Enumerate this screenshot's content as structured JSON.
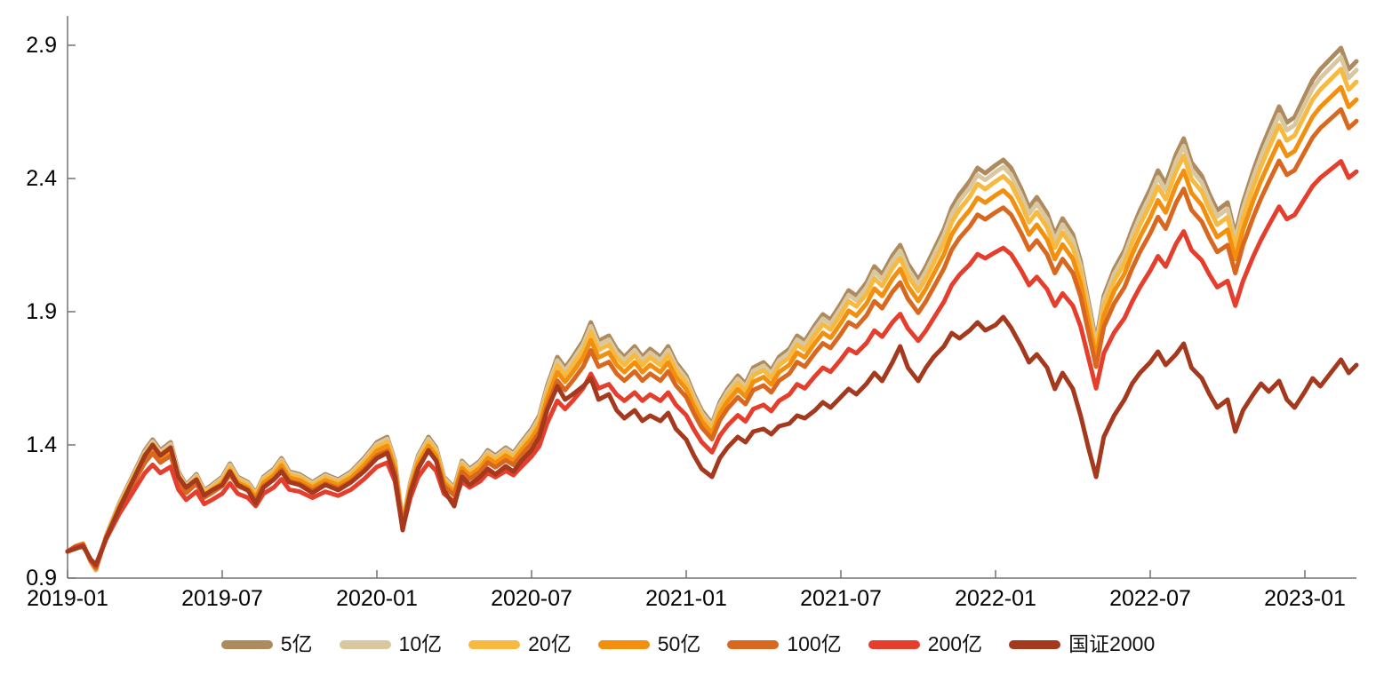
{
  "chart_data": {
    "type": "line",
    "title": "",
    "xlabel": "",
    "ylabel": "",
    "grid": false,
    "legend_position": "bottom-center",
    "background_color": "#ffffff",
    "axis_color": "#737373",
    "tick_label_color": "#000000",
    "ylim": [
      0.9,
      2.9
    ],
    "y_ticks": [
      0.9,
      1.4,
      1.9,
      2.4,
      2.9
    ],
    "xlim_months": [
      0,
      50
    ],
    "x_tick_positions_months": [
      0,
      6,
      12,
      18,
      24,
      30,
      36,
      42,
      48
    ],
    "x_tick_labels": [
      "2019-01",
      "2019-07",
      "2020-01",
      "2020-07",
      "2021-01",
      "2021-07",
      "2022-01",
      "2022-07",
      "2023-01"
    ],
    "x_unit": "months since 2019-01",
    "x": [
      0,
      0.3,
      0.6,
      0.9,
      1.1,
      1.5,
      2.0,
      2.5,
      3.0,
      3.3,
      3.6,
      4.0,
      4.3,
      4.6,
      5.0,
      5.3,
      5.6,
      6.0,
      6.3,
      6.6,
      7.0,
      7.3,
      7.6,
      8.0,
      8.3,
      8.6,
      9.0,
      9.5,
      10.0,
      10.5,
      11.0,
      11.5,
      12.0,
      12.4,
      12.7,
      13.0,
      13.3,
      13.6,
      14.0,
      14.3,
      14.6,
      15.0,
      15.3,
      15.6,
      16.0,
      16.3,
      16.6,
      17.0,
      17.3,
      17.6,
      18.0,
      18.3,
      18.6,
      19.0,
      19.3,
      19.6,
      20.0,
      20.3,
      20.6,
      21.0,
      21.3,
      21.6,
      22.0,
      22.3,
      22.6,
      23.0,
      23.3,
      23.6,
      24.0,
      24.3,
      24.6,
      25.0,
      25.3,
      25.6,
      26.0,
      26.3,
      26.6,
      27.0,
      27.3,
      27.6,
      28.0,
      28.3,
      28.6,
      29.0,
      29.3,
      29.6,
      30.0,
      30.3,
      30.6,
      31.0,
      31.3,
      31.6,
      32.0,
      32.3,
      32.6,
      33.0,
      33.3,
      33.6,
      34.0,
      34.3,
      34.6,
      35.0,
      35.3,
      35.6,
      36.0,
      36.3,
      36.6,
      37.0,
      37.3,
      37.6,
      38.0,
      38.3,
      38.6,
      39.0,
      39.3,
      39.6,
      39.9,
      40.2,
      40.6,
      41.0,
      41.3,
      41.6,
      42.0,
      42.3,
      42.6,
      43.0,
      43.3,
      43.6,
      44.0,
      44.3,
      44.6,
      45.0,
      45.3,
      45.6,
      46.0,
      46.3,
      46.6,
      47.0,
      47.3,
      47.6,
      48.0,
      48.3,
      48.6,
      49.0,
      49.4,
      49.7,
      50.0
    ],
    "fund_base_values": [
      1.0,
      1.02,
      1.03,
      0.96,
      0.93,
      1.06,
      1.18,
      1.28,
      1.38,
      1.42,
      1.38,
      1.41,
      1.3,
      1.25,
      1.29,
      1.23,
      1.25,
      1.28,
      1.33,
      1.28,
      1.26,
      1.22,
      1.28,
      1.31,
      1.35,
      1.3,
      1.29,
      1.26,
      1.29,
      1.27,
      1.3,
      1.35,
      1.41,
      1.43,
      1.34,
      1.11,
      1.26,
      1.36,
      1.43,
      1.39,
      1.28,
      1.24,
      1.34,
      1.31,
      1.34,
      1.38,
      1.36,
      1.39,
      1.37,
      1.41,
      1.46,
      1.51,
      1.62,
      1.73,
      1.69,
      1.73,
      1.79,
      1.86,
      1.79,
      1.81,
      1.76,
      1.73,
      1.77,
      1.73,
      1.76,
      1.73,
      1.77,
      1.71,
      1.66,
      1.59,
      1.53,
      1.48,
      1.56,
      1.61,
      1.66,
      1.63,
      1.69,
      1.71,
      1.68,
      1.73,
      1.76,
      1.81,
      1.79,
      1.85,
      1.89,
      1.87,
      1.93,
      1.98,
      1.96,
      2.01,
      2.07,
      2.04,
      2.11,
      2.15,
      2.08,
      2.02,
      2.07,
      2.13,
      2.21,
      2.29,
      2.34,
      2.39,
      2.44,
      2.42,
      2.45,
      2.47,
      2.44,
      2.36,
      2.29,
      2.33,
      2.27,
      2.19,
      2.25,
      2.19,
      2.09,
      1.94,
      1.79,
      1.96,
      2.06,
      2.13,
      2.21,
      2.28,
      2.36,
      2.43,
      2.38,
      2.49,
      2.55,
      2.46,
      2.41,
      2.34,
      2.28,
      2.31,
      2.19,
      2.31,
      2.43,
      2.51,
      2.58,
      2.67,
      2.61,
      2.63,
      2.71,
      2.77,
      2.81,
      2.85,
      2.89,
      2.81,
      2.84
    ],
    "series": [
      {
        "name": "5亿",
        "color": "#AE8A5F",
        "base_multiplier": 1.0
      },
      {
        "name": "10亿",
        "color": "#D9C79F",
        "base_multiplier": 0.982
      },
      {
        "name": "20亿",
        "color": "#F7B93F",
        "base_multiplier": 0.958
      },
      {
        "name": "50亿",
        "color": "#F28F0E",
        "base_multiplier": 0.922
      },
      {
        "name": "100亿",
        "color": "#D8681F",
        "base_multiplier": 0.878
      },
      {
        "name": "200亿",
        "color": "#E53E2C",
        "base_multiplier": 0.775
      },
      {
        "name": "国证2000",
        "color": "#A4391E",
        "values": [
          1.0,
          1.01,
          1.02,
          0.97,
          0.95,
          1.05,
          1.16,
          1.26,
          1.36,
          1.4,
          1.36,
          1.39,
          1.28,
          1.24,
          1.27,
          1.21,
          1.23,
          1.25,
          1.3,
          1.25,
          1.23,
          1.18,
          1.24,
          1.27,
          1.3,
          1.26,
          1.25,
          1.22,
          1.25,
          1.23,
          1.26,
          1.3,
          1.35,
          1.37,
          1.28,
          1.08,
          1.22,
          1.31,
          1.38,
          1.34,
          1.23,
          1.17,
          1.28,
          1.25,
          1.28,
          1.31,
          1.29,
          1.32,
          1.3,
          1.34,
          1.38,
          1.43,
          1.53,
          1.62,
          1.57,
          1.59,
          1.62,
          1.65,
          1.57,
          1.59,
          1.53,
          1.5,
          1.53,
          1.49,
          1.51,
          1.49,
          1.52,
          1.46,
          1.42,
          1.36,
          1.31,
          1.28,
          1.35,
          1.39,
          1.43,
          1.41,
          1.45,
          1.46,
          1.44,
          1.47,
          1.48,
          1.51,
          1.5,
          1.53,
          1.56,
          1.54,
          1.58,
          1.61,
          1.59,
          1.63,
          1.67,
          1.64,
          1.71,
          1.77,
          1.69,
          1.64,
          1.69,
          1.73,
          1.77,
          1.82,
          1.8,
          1.83,
          1.86,
          1.83,
          1.85,
          1.88,
          1.84,
          1.77,
          1.71,
          1.74,
          1.69,
          1.61,
          1.67,
          1.61,
          1.51,
          1.39,
          1.28,
          1.43,
          1.51,
          1.57,
          1.63,
          1.67,
          1.71,
          1.75,
          1.7,
          1.74,
          1.78,
          1.69,
          1.65,
          1.59,
          1.54,
          1.57,
          1.45,
          1.53,
          1.59,
          1.63,
          1.6,
          1.64,
          1.57,
          1.54,
          1.6,
          1.65,
          1.62,
          1.67,
          1.72,
          1.67,
          1.7
        ]
      }
    ],
    "line_width": 5
  }
}
